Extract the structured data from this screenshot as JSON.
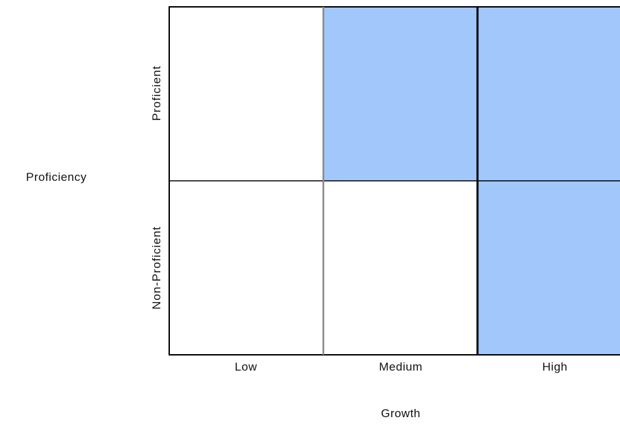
{
  "matrix": {
    "y_axis_title": "Proficiency",
    "x_axis_title": "Growth",
    "rows": [
      "Proficient",
      "Non-Proficient"
    ],
    "columns": [
      "Low",
      "Medium",
      "High"
    ],
    "cells": [
      [
        {
          "row": "Proficient",
          "column": "Low",
          "highlighted": false
        },
        {
          "row": "Proficient",
          "column": "Medium",
          "highlighted": true
        },
        {
          "row": "Proficient",
          "column": "High",
          "highlighted": true
        }
      ],
      [
        {
          "row": "Non-Proficient",
          "column": "Low",
          "highlighted": false
        },
        {
          "row": "Non-Proficient",
          "column": "Medium",
          "highlighted": false
        },
        {
          "row": "Non-Proficient",
          "column": "High",
          "highlighted": true
        }
      ]
    ],
    "colors": {
      "highlight": "#a2c7fb",
      "background": "#ffffff",
      "grid_line": "#000000",
      "medium_divider": "#888888"
    }
  }
}
